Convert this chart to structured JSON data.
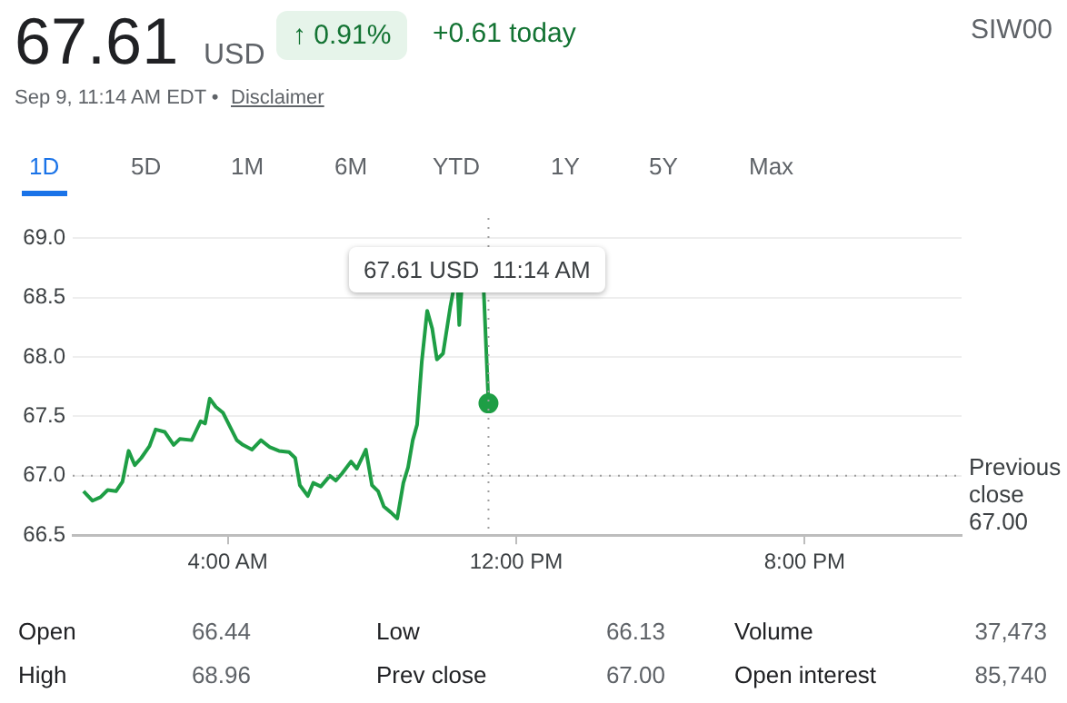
{
  "chart_data": {
    "type": "line",
    "x": [
      0,
      0.25,
      0.47,
      0.67,
      0.9,
      1.08,
      1.25,
      1.42,
      1.6,
      1.83,
      2.0,
      2.25,
      2.5,
      2.67,
      3.0,
      3.25,
      3.37,
      3.5,
      3.67,
      3.87,
      4.25,
      4.42,
      4.67,
      4.92,
      5.17,
      5.42,
      5.7,
      5.87,
      6.0,
      6.22,
      6.37,
      6.58,
      6.83,
      7.0,
      7.17,
      7.42,
      7.58,
      7.83,
      8.0,
      8.17,
      8.33,
      8.53,
      8.7,
      8.87,
      9.0,
      9.13,
      9.25,
      9.38,
      9.53,
      9.67,
      9.8,
      9.97,
      10.17,
      10.25,
      10.33,
      10.38,
      10.42,
      10.48,
      10.55,
      11.1,
      11.23
    ],
    "series": [
      {
        "color": "#1e9e45",
        "values": [
          66.87,
          66.79,
          66.82,
          66.88,
          66.87,
          66.95,
          67.21,
          67.09,
          67.15,
          67.25,
          67.39,
          67.37,
          67.26,
          67.31,
          67.3,
          67.46,
          67.44,
          67.65,
          67.58,
          67.53,
          67.3,
          67.26,
          67.22,
          67.3,
          67.24,
          67.21,
          67.2,
          67.15,
          66.92,
          66.83,
          66.94,
          66.91,
          67.0,
          66.96,
          67.02,
          67.12,
          67.06,
          67.22,
          66.92,
          66.87,
          66.74,
          66.69,
          66.64,
          66.94,
          67.07,
          67.3,
          67.43,
          67.96,
          68.39,
          68.24,
          67.98,
          68.03,
          68.42,
          68.55,
          null,
          68.55,
          68.27,
          68.55,
          null,
          68.55,
          67.61
        ]
      }
    ],
    "xlim": [
      -0.3,
      24.35
    ],
    "xticks": [
      {
        "value": 4,
        "label": "4:00 AM"
      },
      {
        "value": 12,
        "label": "12:00 PM"
      },
      {
        "value": 20,
        "label": "8:00 PM"
      }
    ],
    "ylim": [
      66.5,
      69.0
    ],
    "yticks": [
      {
        "value": 66.5,
        "label": "66.5"
      },
      {
        "value": 67,
        "label": "67.0"
      },
      {
        "value": 67.5,
        "label": "67.5"
      },
      {
        "value": 68,
        "label": "68.0"
      },
      {
        "value": 68.5,
        "label": "68.5"
      },
      {
        "value": 69,
        "label": "69.0"
      }
    ],
    "grid": "y",
    "ref_lines": [
      {
        "axis": "y",
        "value": 67.0,
        "label": "Previous close 67.00",
        "color": "#9e9e9e",
        "line_style": "dotted"
      },
      {
        "axis": "x",
        "value": 11.23,
        "label": null,
        "color": "#9e9e9e",
        "line_style": "dotted"
      }
    ],
    "annotations": [
      "67.61",
      "USD",
      "↑ 0.91%",
      "+0.61 today",
      "SIW00",
      "Sep 9, 11:14 AM EDT •",
      "Disclaimer",
      "1D",
      "5D",
      "1M",
      "6M",
      "YTD",
      "1Y",
      "5Y",
      "Max",
      "67.61 USD  11:14 AM",
      "Open",
      "66.44",
      "Low",
      "66.13",
      "Volume",
      "37,473",
      "High",
      "68.96",
      "Prev close",
      "67.00",
      "Open interest",
      "85,740"
    ]
  }
}
